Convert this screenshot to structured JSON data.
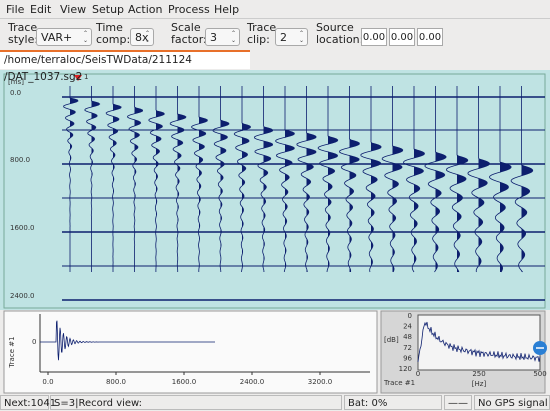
{
  "menu": [
    "File",
    "Edit",
    "View",
    "Setup",
    "Action",
    "Process",
    "Help"
  ],
  "toolbar": {
    "trace_style": {
      "label": "Trace style:",
      "value": "VAR+"
    },
    "time_comp": {
      "label": "Time comp:",
      "value": "8x"
    },
    "scale_factor": {
      "label": "Scale factor:",
      "value": "3"
    },
    "trace_clip": {
      "label": "Trace clip:",
      "value": "2"
    },
    "source_location": {
      "label": "Source location:",
      "values": [
        "0.00",
        "0.00",
        "0.00"
      ]
    }
  },
  "tab": "/home/terraloc/SeisTWData/211124 /DAT_1037.sg2",
  "record_view": {
    "unit": "[ms]",
    "marker": "1",
    "yticks": [
      "0.0",
      "800.0",
      "1600.0",
      "2400.0"
    ]
  },
  "trace_view": {
    "zero": "0",
    "xticks": [
      "0.0",
      "800.0",
      "1600.0",
      "2400.0",
      "3200.0"
    ],
    "label": "Trace #1"
  },
  "spectrum": {
    "unit_y": "[dB]",
    "yticks": [
      "0",
      "24",
      "48",
      "72",
      "96",
      "120"
    ],
    "unit_x": "[Hz]",
    "xticks": [
      "0",
      "250",
      "500"
    ],
    "label": "Trace #1"
  },
  "status": [
    "Next:1041",
    "S=3|Record view:",
    "Bat: 0%",
    "——",
    "No GPS signal"
  ]
}
